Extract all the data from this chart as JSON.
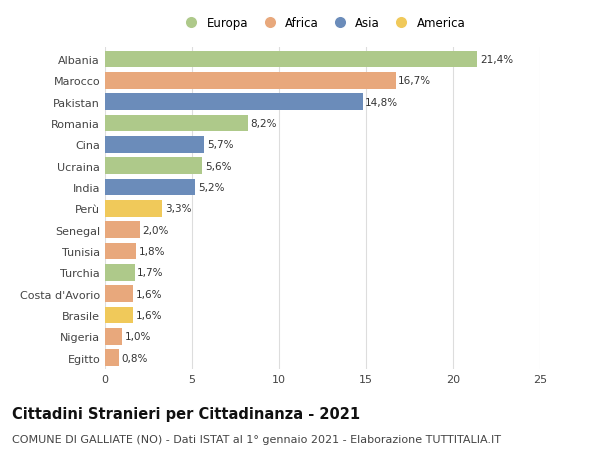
{
  "categories": [
    "Albania",
    "Marocco",
    "Pakistan",
    "Romania",
    "Cina",
    "Ucraina",
    "India",
    "Perù",
    "Senegal",
    "Tunisia",
    "Turchia",
    "Costa d'Avorio",
    "Brasile",
    "Nigeria",
    "Egitto"
  ],
  "values": [
    21.4,
    16.7,
    14.8,
    8.2,
    5.7,
    5.6,
    5.2,
    3.3,
    2.0,
    1.8,
    1.7,
    1.6,
    1.6,
    1.0,
    0.8
  ],
  "labels": [
    "21,4%",
    "16,7%",
    "14,8%",
    "8,2%",
    "5,7%",
    "5,6%",
    "5,2%",
    "3,3%",
    "2,0%",
    "1,8%",
    "1,7%",
    "1,6%",
    "1,6%",
    "1,0%",
    "0,8%"
  ],
  "continents": [
    "Europa",
    "Africa",
    "Asia",
    "Europa",
    "Asia",
    "Europa",
    "Asia",
    "America",
    "Africa",
    "Africa",
    "Europa",
    "Africa",
    "America",
    "Africa",
    "Africa"
  ],
  "continent_colors": {
    "Europa": "#aec98a",
    "Africa": "#e8a87c",
    "Asia": "#6b8cba",
    "America": "#f0c95a"
  },
  "legend_order": [
    "Europa",
    "Africa",
    "Asia",
    "America"
  ],
  "title": "Cittadini Stranieri per Cittadinanza - 2021",
  "subtitle": "COMUNE DI GALLIATE (NO) - Dati ISTAT al 1° gennaio 2021 - Elaborazione TUTTITALIA.IT",
  "xlim": [
    0,
    25
  ],
  "xticks": [
    0,
    5,
    10,
    15,
    20,
    25
  ],
  "background_color": "#ffffff",
  "grid_color": "#dddddd",
  "bar_height": 0.78,
  "title_fontsize": 10.5,
  "subtitle_fontsize": 8,
  "label_fontsize": 7.5,
  "tick_fontsize": 8,
  "legend_fontsize": 8.5
}
